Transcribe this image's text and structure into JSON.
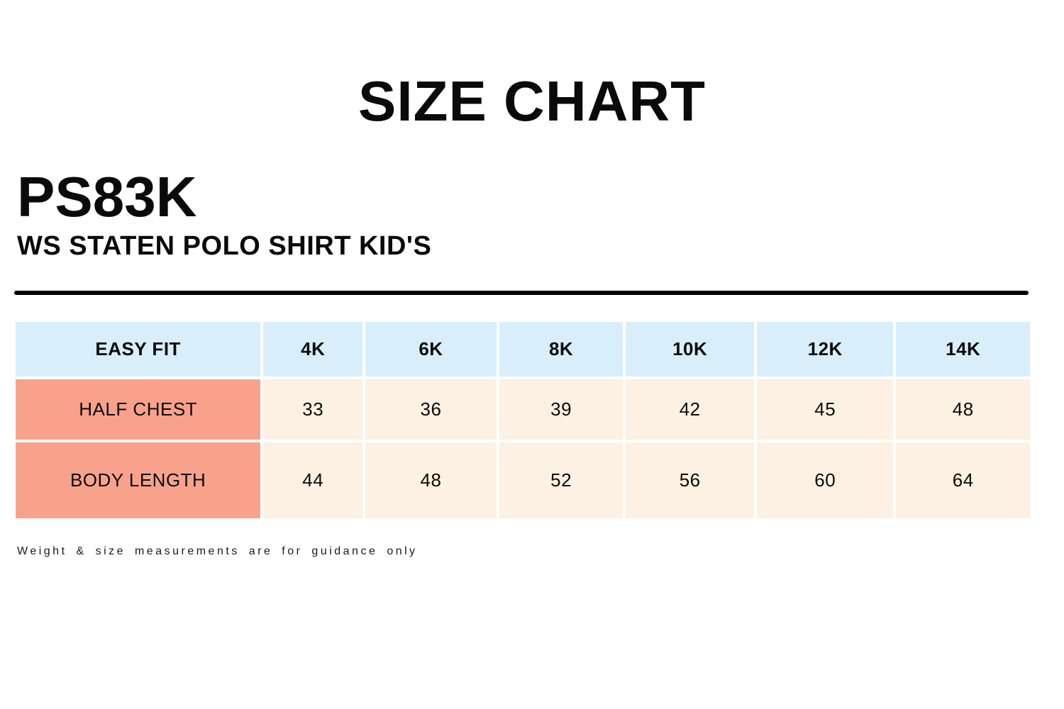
{
  "page": {
    "title": "SIZE CHART",
    "product_code": "PS83K",
    "product_name": "WS STATEN POLO SHIRT KID'S",
    "footnote": "Weight & size measurements are for guidance only"
  },
  "chart_data": {
    "type": "table",
    "fit_label": "EASY FIT",
    "columns": [
      "4K",
      "6K",
      "8K",
      "10K",
      "12K",
      "14K"
    ],
    "rows": [
      {
        "label": "HALF CHEST",
        "values": [
          33,
          36,
          39,
          42,
          45,
          48
        ]
      },
      {
        "label": "BODY LENGTH",
        "values": [
          44,
          48,
          52,
          56,
          60,
          64
        ]
      }
    ]
  },
  "colors": {
    "header_bg": "#D8EEFB",
    "label_bg": "#F8A28C",
    "value_bg": "#FCF1E2",
    "divider": "#000000"
  }
}
